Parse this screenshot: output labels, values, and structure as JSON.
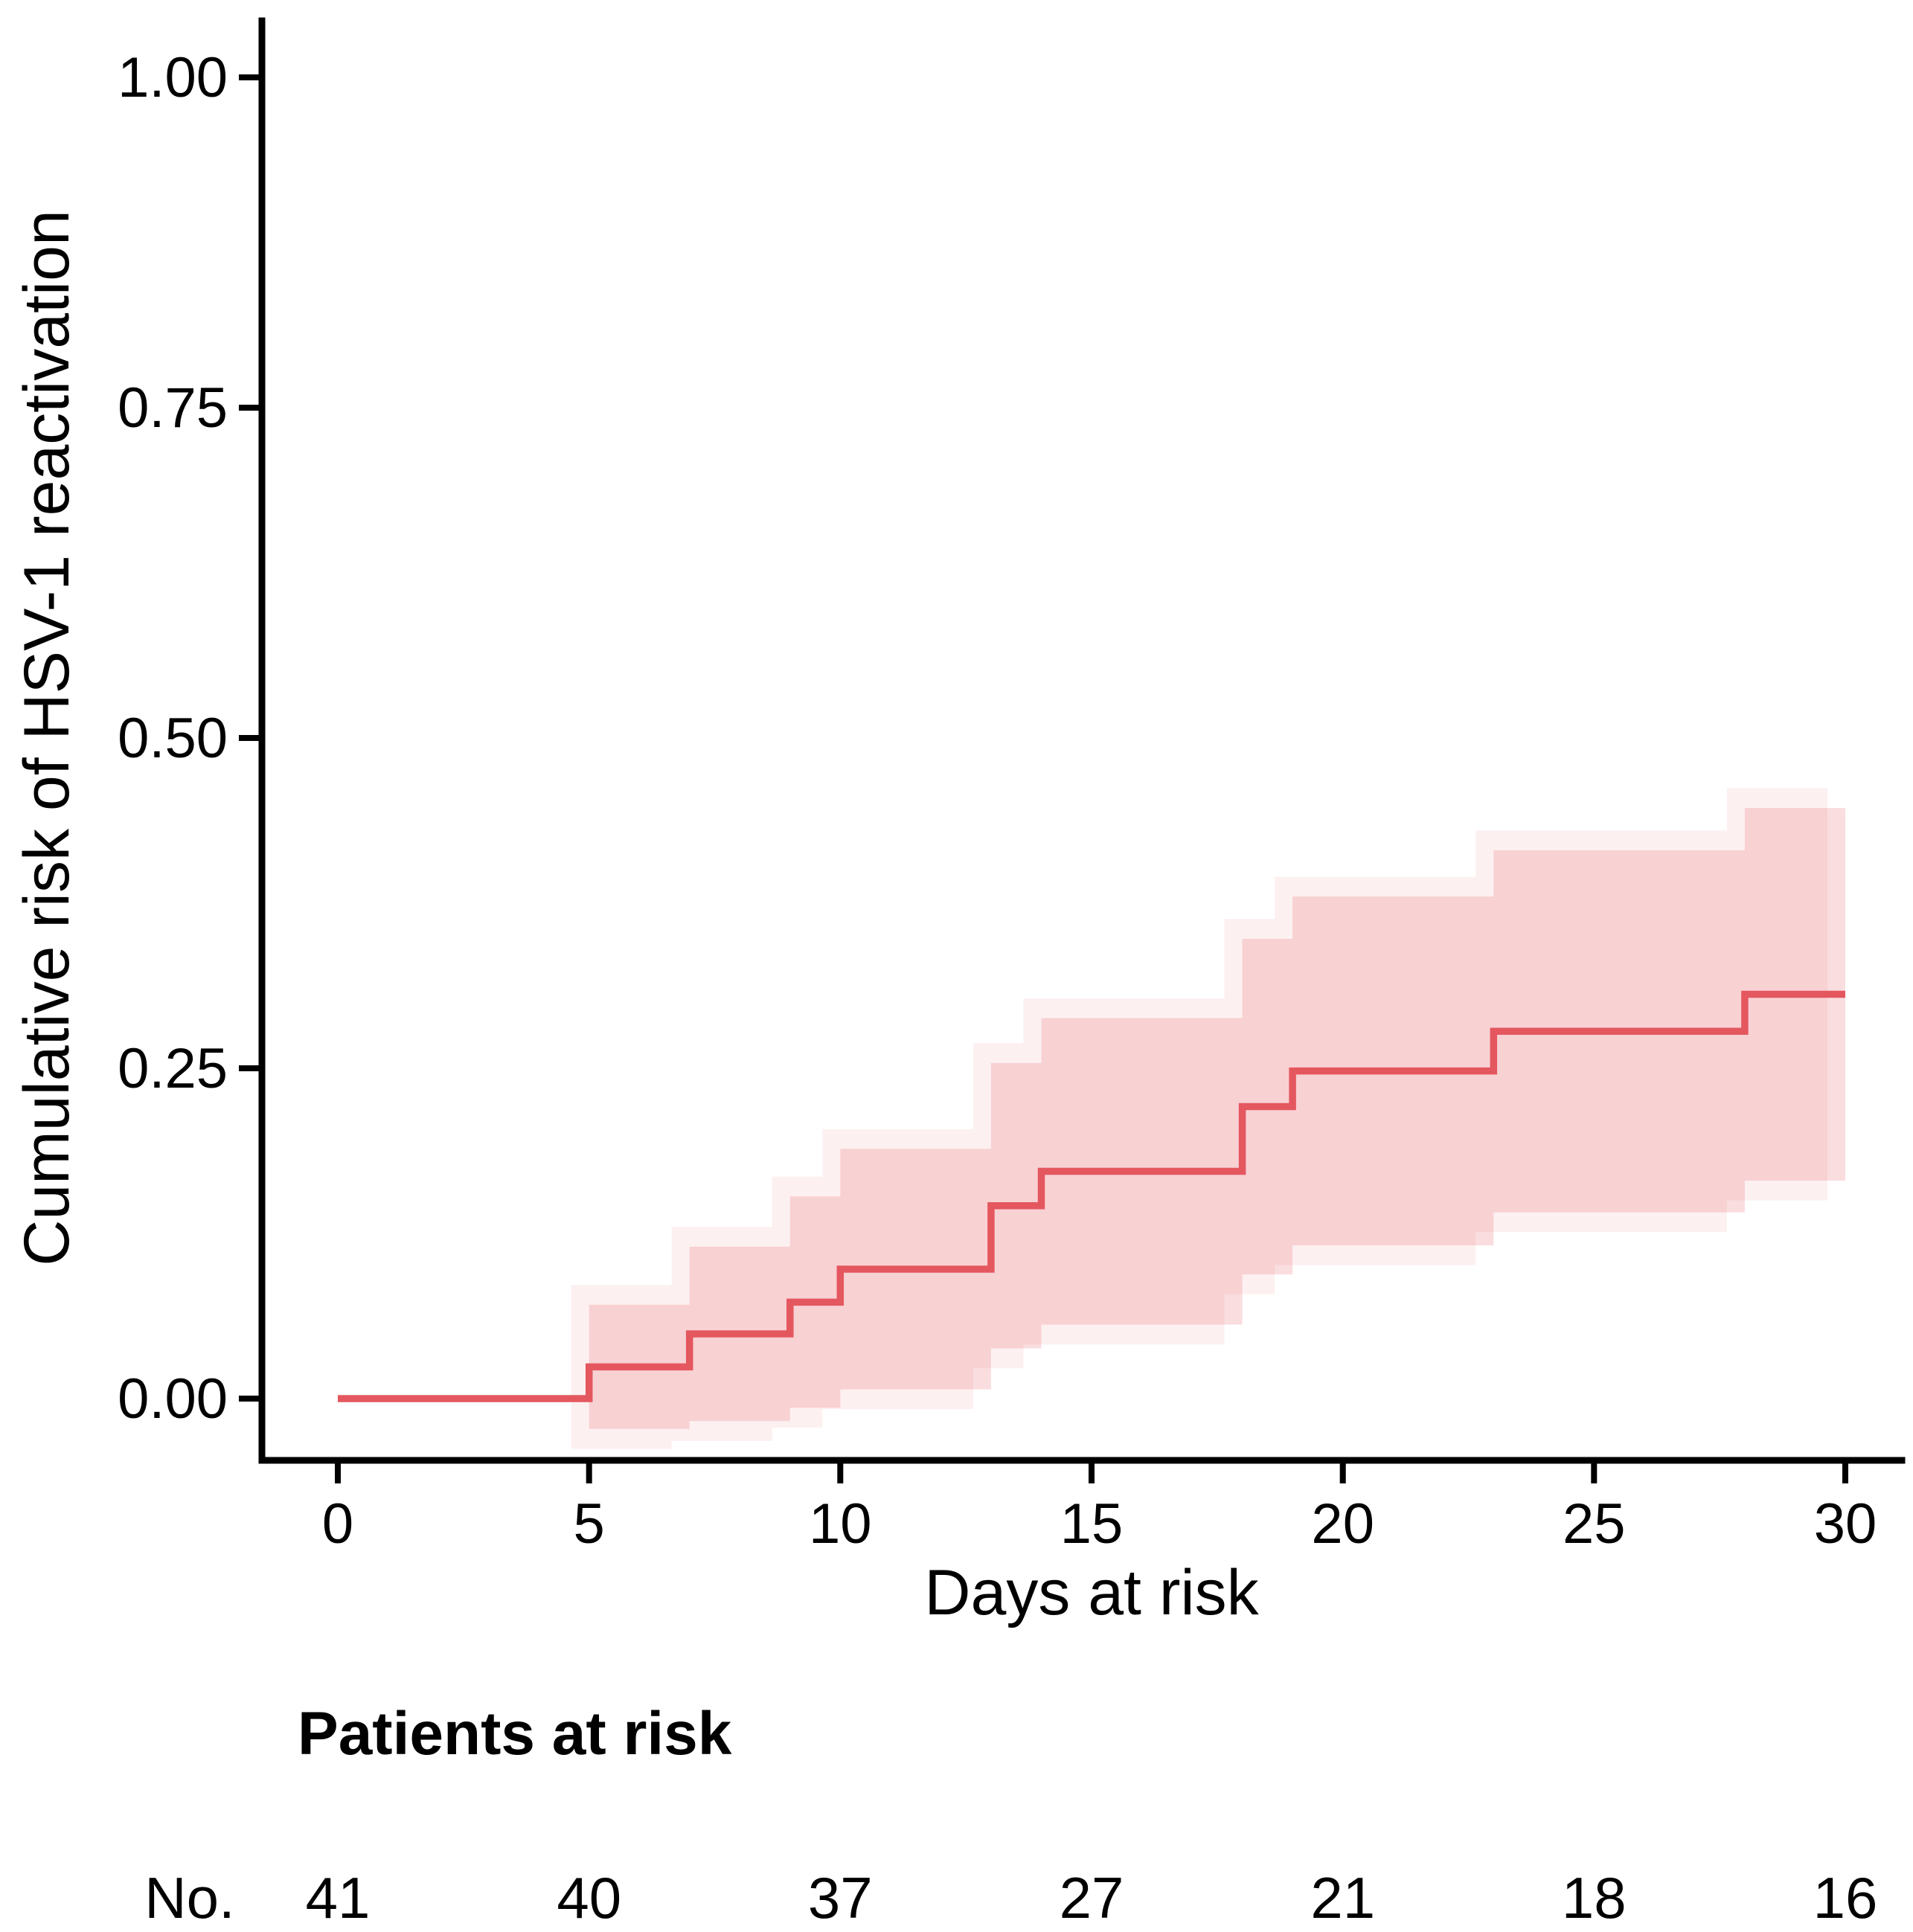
{
  "figure": {
    "background": "#ffffff",
    "y_axis": {
      "title": "Cumulative risk of HSV-1 reactivation",
      "tick_labels": [
        "0.00",
        "0.25",
        "0.50",
        "0.75",
        "1.00"
      ],
      "tick_values": [
        0,
        0.25,
        0.5,
        0.75,
        1.0
      ]
    },
    "x_axis": {
      "title": "Days at risk",
      "tick_labels": [
        "0",
        "5",
        "10",
        "15",
        "20",
        "25",
        "30"
      ],
      "tick_values": [
        0,
        5,
        10,
        15,
        20,
        25,
        30
      ]
    },
    "risk_table": {
      "header": "Patients at risk",
      "row_label": "No.",
      "days": [
        0,
        5,
        10,
        15,
        20,
        25,
        30
      ],
      "counts": [
        "41",
        "40",
        "37",
        "27",
        "21",
        "18",
        "16"
      ]
    },
    "colors": {
      "curve": "#E4575F",
      "ribbon_fill": "#E4575F",
      "ribbon_alpha_main": 0.2,
      "ribbon_alpha_halo": 0.09,
      "axis": "#000000",
      "text": "#000000"
    }
  },
  "chart_data": {
    "type": "line",
    "subtype": "cumulative-incidence-step-curve",
    "title": "",
    "xlabel": "Days at risk",
    "ylabel": "Cumulative risk of HSV-1 reactivation",
    "xlim": [
      0,
      30
    ],
    "ylim": [
      0,
      1.0
    ],
    "x_ticks": [
      0,
      5,
      10,
      15,
      20,
      25,
      30
    ],
    "y_ticks": [
      0,
      0.25,
      0.5,
      0.75,
      1.0
    ],
    "grid": false,
    "legend": "none",
    "series": [
      {
        "name": "Cumulative risk of HSV-1 reactivation",
        "color": "#E4575F",
        "step_x": [
          0,
          5,
          7,
          9,
          10,
          13,
          14,
          18,
          19,
          23,
          28
        ],
        "step_y": [
          0,
          0.024,
          0.049,
          0.073,
          0.098,
          0.146,
          0.172,
          0.221,
          0.248,
          0.278,
          0.306
        ],
        "x_end": 30,
        "ci_x": [
          5,
          7,
          9,
          10,
          13,
          14,
          18,
          19,
          23,
          28
        ],
        "ci_upper": [
          0.071,
          0.115,
          0.153,
          0.189,
          0.254,
          0.288,
          0.348,
          0.38,
          0.415,
          0.447
        ],
        "ci_lower": [
          -0.023,
          -0.017,
          -0.007,
          0.007,
          0.038,
          0.056,
          0.094,
          0.116,
          0.141,
          0.165
        ],
        "ci_x_end": 30
      }
    ],
    "risk_table": {
      "title": "Patients at risk",
      "row_label": "No.",
      "x": [
        0,
        5,
        10,
        15,
        20,
        25,
        30
      ],
      "counts": [
        41,
        40,
        37,
        27,
        21,
        18,
        16
      ]
    }
  }
}
